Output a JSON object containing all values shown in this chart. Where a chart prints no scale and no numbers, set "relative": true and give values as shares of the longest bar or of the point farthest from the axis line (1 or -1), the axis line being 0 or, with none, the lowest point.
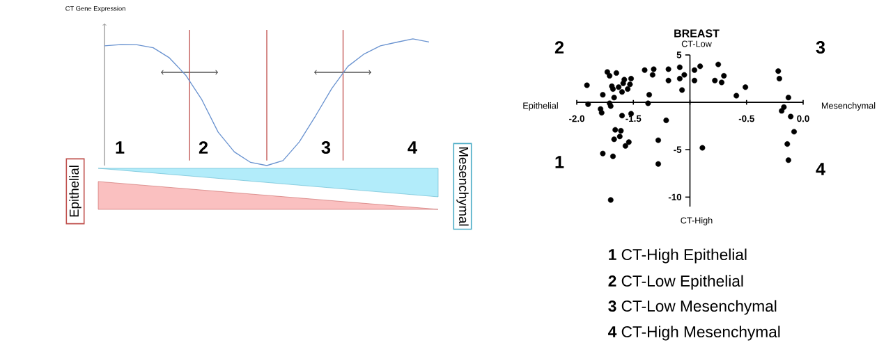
{
  "chart_data": [
    {
      "type": "line",
      "ylabel": "CT Gene Expression",
      "relative": true,
      "color": "#6a93d0",
      "categories": [
        null,
        null,
        null,
        null,
        null,
        null,
        null,
        null,
        null,
        null,
        null,
        null,
        null,
        null,
        null,
        null,
        null,
        null,
        null,
        null,
        null
      ],
      "values": [
        0.945,
        0.955,
        0.953,
        0.93,
        0.85,
        0.714,
        0.519,
        0.264,
        0.108,
        0.025,
        0,
        0.039,
        0.186,
        0.391,
        0.607,
        0.783,
        0.881,
        0.945,
        0.973,
        1.0,
        0.975
      ],
      "annotations": [
        "1",
        "2",
        "3",
        "4",
        "Epithelial",
        "Mesenchymal"
      ]
    },
    {
      "type": "scatter",
      "title": "BREAST",
      "color": "#000000",
      "marker": "circle",
      "xlim": [
        -2,
        0
      ],
      "ylim": [
        -11,
        5
      ],
      "xticks": [
        {
          "value": -2,
          "label": "-2.0"
        },
        {
          "value": -1.5,
          "label": "-1.5"
        },
        {
          "value": -1,
          "label": null
        },
        {
          "value": -0.5,
          "label": "-0.5"
        },
        {
          "value": 0,
          "label": "0.0"
        }
      ],
      "yticks": [
        5,
        -5,
        -10
      ],
      "x": [
        -1.91,
        -1.9,
        -1.77,
        -1.79,
        -1.78,
        -1.73,
        -1.71,
        -1.65,
        -1.69,
        -1.68,
        -1.63,
        -1.67,
        -1.71,
        -1.7,
        -1.58,
        -1.59,
        -1.6,
        -1.55,
        -1.52,
        -1.53,
        -1.6,
        -1.52,
        -1.66,
        -1.61,
        -1.62,
        -1.67,
        -1.54,
        -1.57,
        -1.77,
        -1.68,
        -1.7,
        -1.4,
        -1.32,
        -1.33,
        -1.36,
        -1.37,
        -1.21,
        -1.28,
        -1.28,
        -1.19,
        -1.19,
        -1.09,
        -1.09,
        -1.05,
        -1.07,
        -0.96,
        -0.96,
        -0.91,
        -0.89,
        -0.75,
        -0.78,
        -0.7,
        -0.72,
        -0.59,
        -0.51,
        -0.22,
        -0.21,
        -0.13,
        -0.17,
        -0.19,
        -0.11,
        -0.08,
        -0.14,
        -0.13
      ],
      "values": [
        1.8,
        -0.2,
        0.8,
        -0.7,
        -1.1,
        3.2,
        2.8,
        3.1,
        1.7,
        1.4,
        1.6,
        0.5,
        -0.1,
        -0.4,
        2.4,
        2.0,
        1.1,
        1.4,
        2.5,
        1.9,
        -1.4,
        -1.2,
        -2.9,
        -3.0,
        -3.6,
        -3.9,
        -4.2,
        -4.6,
        -5.4,
        -5.7,
        -10.3,
        3.4,
        3.5,
        2.9,
        0.8,
        -0.1,
        -1.9,
        -4.0,
        -6.5,
        3.5,
        2.3,
        3.7,
        2.5,
        2.9,
        1.3,
        3.4,
        2.3,
        3.8,
        -4.8,
        4.0,
        2.3,
        2.8,
        2.1,
        0.7,
        1.6,
        3.3,
        2.5,
        0.5,
        -0.5,
        -0.9,
        -1.5,
        -3.1,
        -4.4,
        -6.1
      ],
      "annotations": [
        "2",
        "3",
        "1",
        "4",
        "CT-Low",
        "CT-High",
        "Epithelial",
        "Mesenchymal",
        "**1** CT-High Epithelial",
        "**2** CT-Low Epithelial",
        "**3** CT-Low Mesenchymal",
        "**4** CT-High Mesenchymal"
      ]
    }
  ]
}
